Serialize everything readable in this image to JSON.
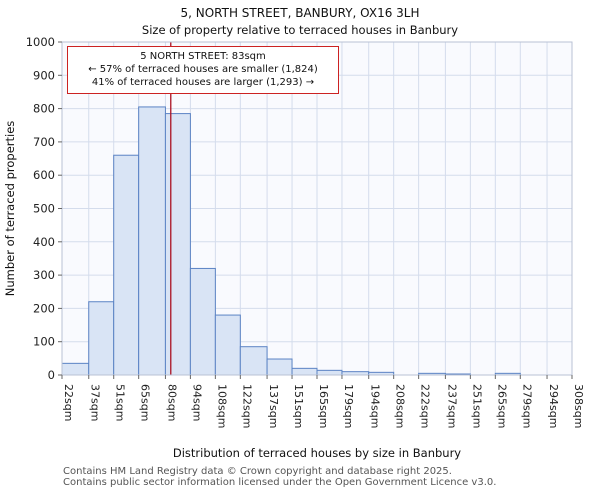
{
  "page": {
    "title": "5, NORTH STREET, BANBURY, OX16 3LH",
    "subtitle": "Size of property relative to terraced houses in Banbury"
  },
  "annotation": {
    "line1": "5 NORTH STREET: 83sqm",
    "line2": "← 57% of terraced houses are smaller (1,824)",
    "line3": "41% of terraced houses are larger (1,293) →"
  },
  "footer": {
    "line1": "Contains HM Land Registry data © Crown copyright and database right 2025.",
    "line2": "Contains public sector information licensed under the Open Government Licence v3.0."
  },
  "chart_data": {
    "type": "bar",
    "title": "5, NORTH STREET, BANBURY, OX16 3LH",
    "subtitle": "Size of property relative to terraced houses in Banbury",
    "xlabel": "Distribution of terraced houses by size in Banbury",
    "ylabel": "Number of terraced properties",
    "bin_edges": [
      22,
      37,
      51,
      65,
      80,
      94,
      108,
      122,
      137,
      151,
      165,
      179,
      194,
      208,
      222,
      237,
      251,
      265,
      279,
      294,
      308
    ],
    "x_tick_labels": [
      "22sqm",
      "37sqm",
      "51sqm",
      "65sqm",
      "80sqm",
      "94sqm",
      "108sqm",
      "122sqm",
      "137sqm",
      "151sqm",
      "165sqm",
      "179sqm",
      "194sqm",
      "208sqm",
      "222sqm",
      "237sqm",
      "251sqm",
      "265sqm",
      "279sqm",
      "294sqm",
      "308sqm"
    ],
    "values": [
      35,
      220,
      660,
      805,
      785,
      320,
      180,
      85,
      48,
      20,
      14,
      10,
      8,
      0,
      5,
      3,
      0,
      5,
      0,
      0
    ],
    "ylim": [
      0,
      1000
    ],
    "ytick_step": 100,
    "grid": true,
    "legend": "none",
    "marker_value": 83,
    "marker_label": "83sqm",
    "colors": {
      "bar_fill": "#d9e4f5",
      "bar_stroke": "#5b83c4",
      "marker_line": "#aa1122",
      "grid": "#d4dcec",
      "plot_bg": "#f9fafe",
      "axis": "#b9c2d4",
      "tick_text": "#222222",
      "annotation_border": "#cc2222"
    }
  }
}
